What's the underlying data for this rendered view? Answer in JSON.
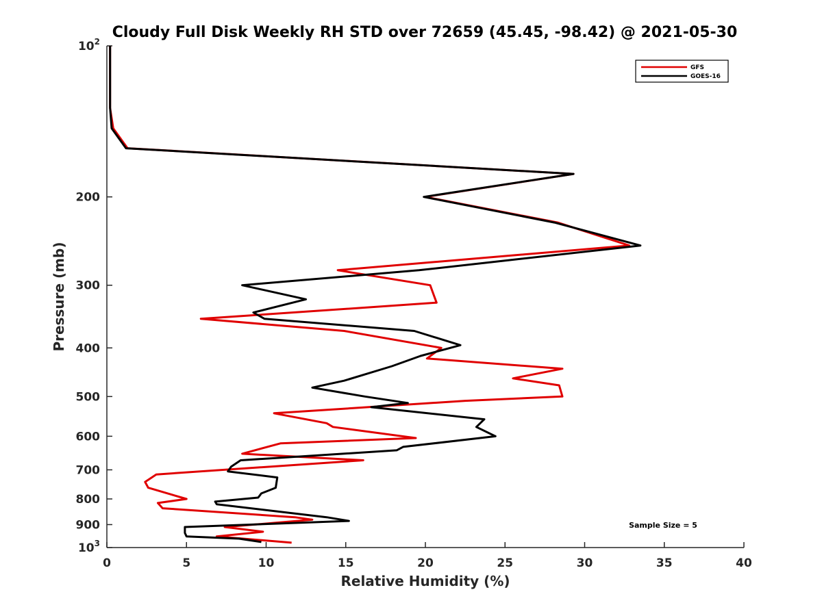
{
  "chart_data": {
    "type": "line",
    "title": "Cloudy Full Disk Weekly RH STD over 72659 (45.45, -98.42) @ 2021-05-30",
    "xlabel": "Relative Humidity (%)",
    "ylabel": "Pressure (mb)",
    "xlim": [
      0,
      40
    ],
    "ylim": [
      100,
      1000
    ],
    "y_scale": "log",
    "y_reversed": true,
    "grid": false,
    "legend_position": "top-right",
    "annotation": "Sample Size = 5",
    "x_ticks": [
      "0",
      "5",
      "10",
      "15",
      "20",
      "25",
      "30",
      "35",
      "40"
    ],
    "x_tick_values": [
      0,
      5,
      10,
      15,
      20,
      25,
      30,
      35,
      40
    ],
    "y_ticks": [
      {
        "value": 100,
        "base": "10",
        "exp": "2"
      },
      {
        "value": 200,
        "label": "200"
      },
      {
        "value": 300,
        "label": "300"
      },
      {
        "value": 400,
        "label": "400"
      },
      {
        "value": 500,
        "label": "500"
      },
      {
        "value": 600,
        "label": "600"
      },
      {
        "value": 700,
        "label": "700"
      },
      {
        "value": 800,
        "label": "800"
      },
      {
        "value": 900,
        "label": "900"
      },
      {
        "value": 1000,
        "base": "10",
        "exp": "3"
      }
    ],
    "series": [
      {
        "name": "GFS",
        "color": "#e00000",
        "points": [
          [
            0.2,
            100
          ],
          [
            0.2,
            110
          ],
          [
            0.2,
            121
          ],
          [
            0.2,
            133
          ],
          [
            0.4,
            146
          ],
          [
            1.3,
            160
          ],
          [
            29.3,
            180
          ],
          [
            20.0,
            200
          ],
          [
            28.3,
            225
          ],
          [
            32.8,
            250
          ],
          [
            14.5,
            280
          ],
          [
            20.3,
            300
          ],
          [
            20.7,
            325
          ],
          [
            5.9,
            350
          ],
          [
            14.9,
            370
          ],
          [
            21.0,
            400
          ],
          [
            20.1,
            420
          ],
          [
            28.6,
            440
          ],
          [
            25.5,
            460
          ],
          [
            28.4,
            475
          ],
          [
            28.6,
            500
          ],
          [
            22.5,
            510
          ],
          [
            10.5,
            540
          ],
          [
            13.8,
            565
          ],
          [
            14.2,
            575
          ],
          [
            19.4,
            605
          ],
          [
            10.9,
            620
          ],
          [
            8.5,
            650
          ],
          [
            16.1,
            670
          ],
          [
            3.1,
            715
          ],
          [
            2.4,
            740
          ],
          [
            2.6,
            760
          ],
          [
            5.0,
            800
          ],
          [
            3.2,
            815
          ],
          [
            3.5,
            835
          ],
          [
            11.8,
            870
          ],
          [
            12.9,
            880
          ],
          [
            7.4,
            910
          ],
          [
            9.8,
            930
          ],
          [
            6.9,
            950
          ],
          [
            11.6,
            978
          ]
        ]
      },
      {
        "name": "GOES-16",
        "color": "#000000",
        "points": [
          [
            0.2,
            100
          ],
          [
            0.2,
            110
          ],
          [
            0.2,
            121
          ],
          [
            0.2,
            133
          ],
          [
            0.3,
            146
          ],
          [
            1.2,
            160
          ],
          [
            29.3,
            180
          ],
          [
            19.9,
            200
          ],
          [
            28.1,
            225
          ],
          [
            33.5,
            250
          ],
          [
            19.6,
            280
          ],
          [
            8.5,
            300
          ],
          [
            12.5,
            320
          ],
          [
            9.2,
            340
          ],
          [
            9.9,
            350
          ],
          [
            19.3,
            370
          ],
          [
            22.2,
            395
          ],
          [
            19.7,
            415
          ],
          [
            17.9,
            435
          ],
          [
            14.9,
            465
          ],
          [
            12.9,
            480
          ],
          [
            16.2,
            500
          ],
          [
            18.9,
            515
          ],
          [
            16.6,
            525
          ],
          [
            23.7,
            555
          ],
          [
            23.2,
            575
          ],
          [
            24.4,
            600
          ],
          [
            18.6,
            630
          ],
          [
            18.2,
            640
          ],
          [
            8.4,
            670
          ],
          [
            7.8,
            690
          ],
          [
            7.6,
            705
          ],
          [
            10.7,
            725
          ],
          [
            10.6,
            760
          ],
          [
            9.7,
            780
          ],
          [
            9.5,
            795
          ],
          [
            6.8,
            810
          ],
          [
            6.9,
            820
          ],
          [
            13.8,
            870
          ],
          [
            15.2,
            885
          ],
          [
            4.9,
            910
          ],
          [
            4.9,
            935
          ],
          [
            5.0,
            950
          ],
          [
            8.3,
            960
          ],
          [
            9.7,
            975
          ]
        ]
      }
    ]
  }
}
